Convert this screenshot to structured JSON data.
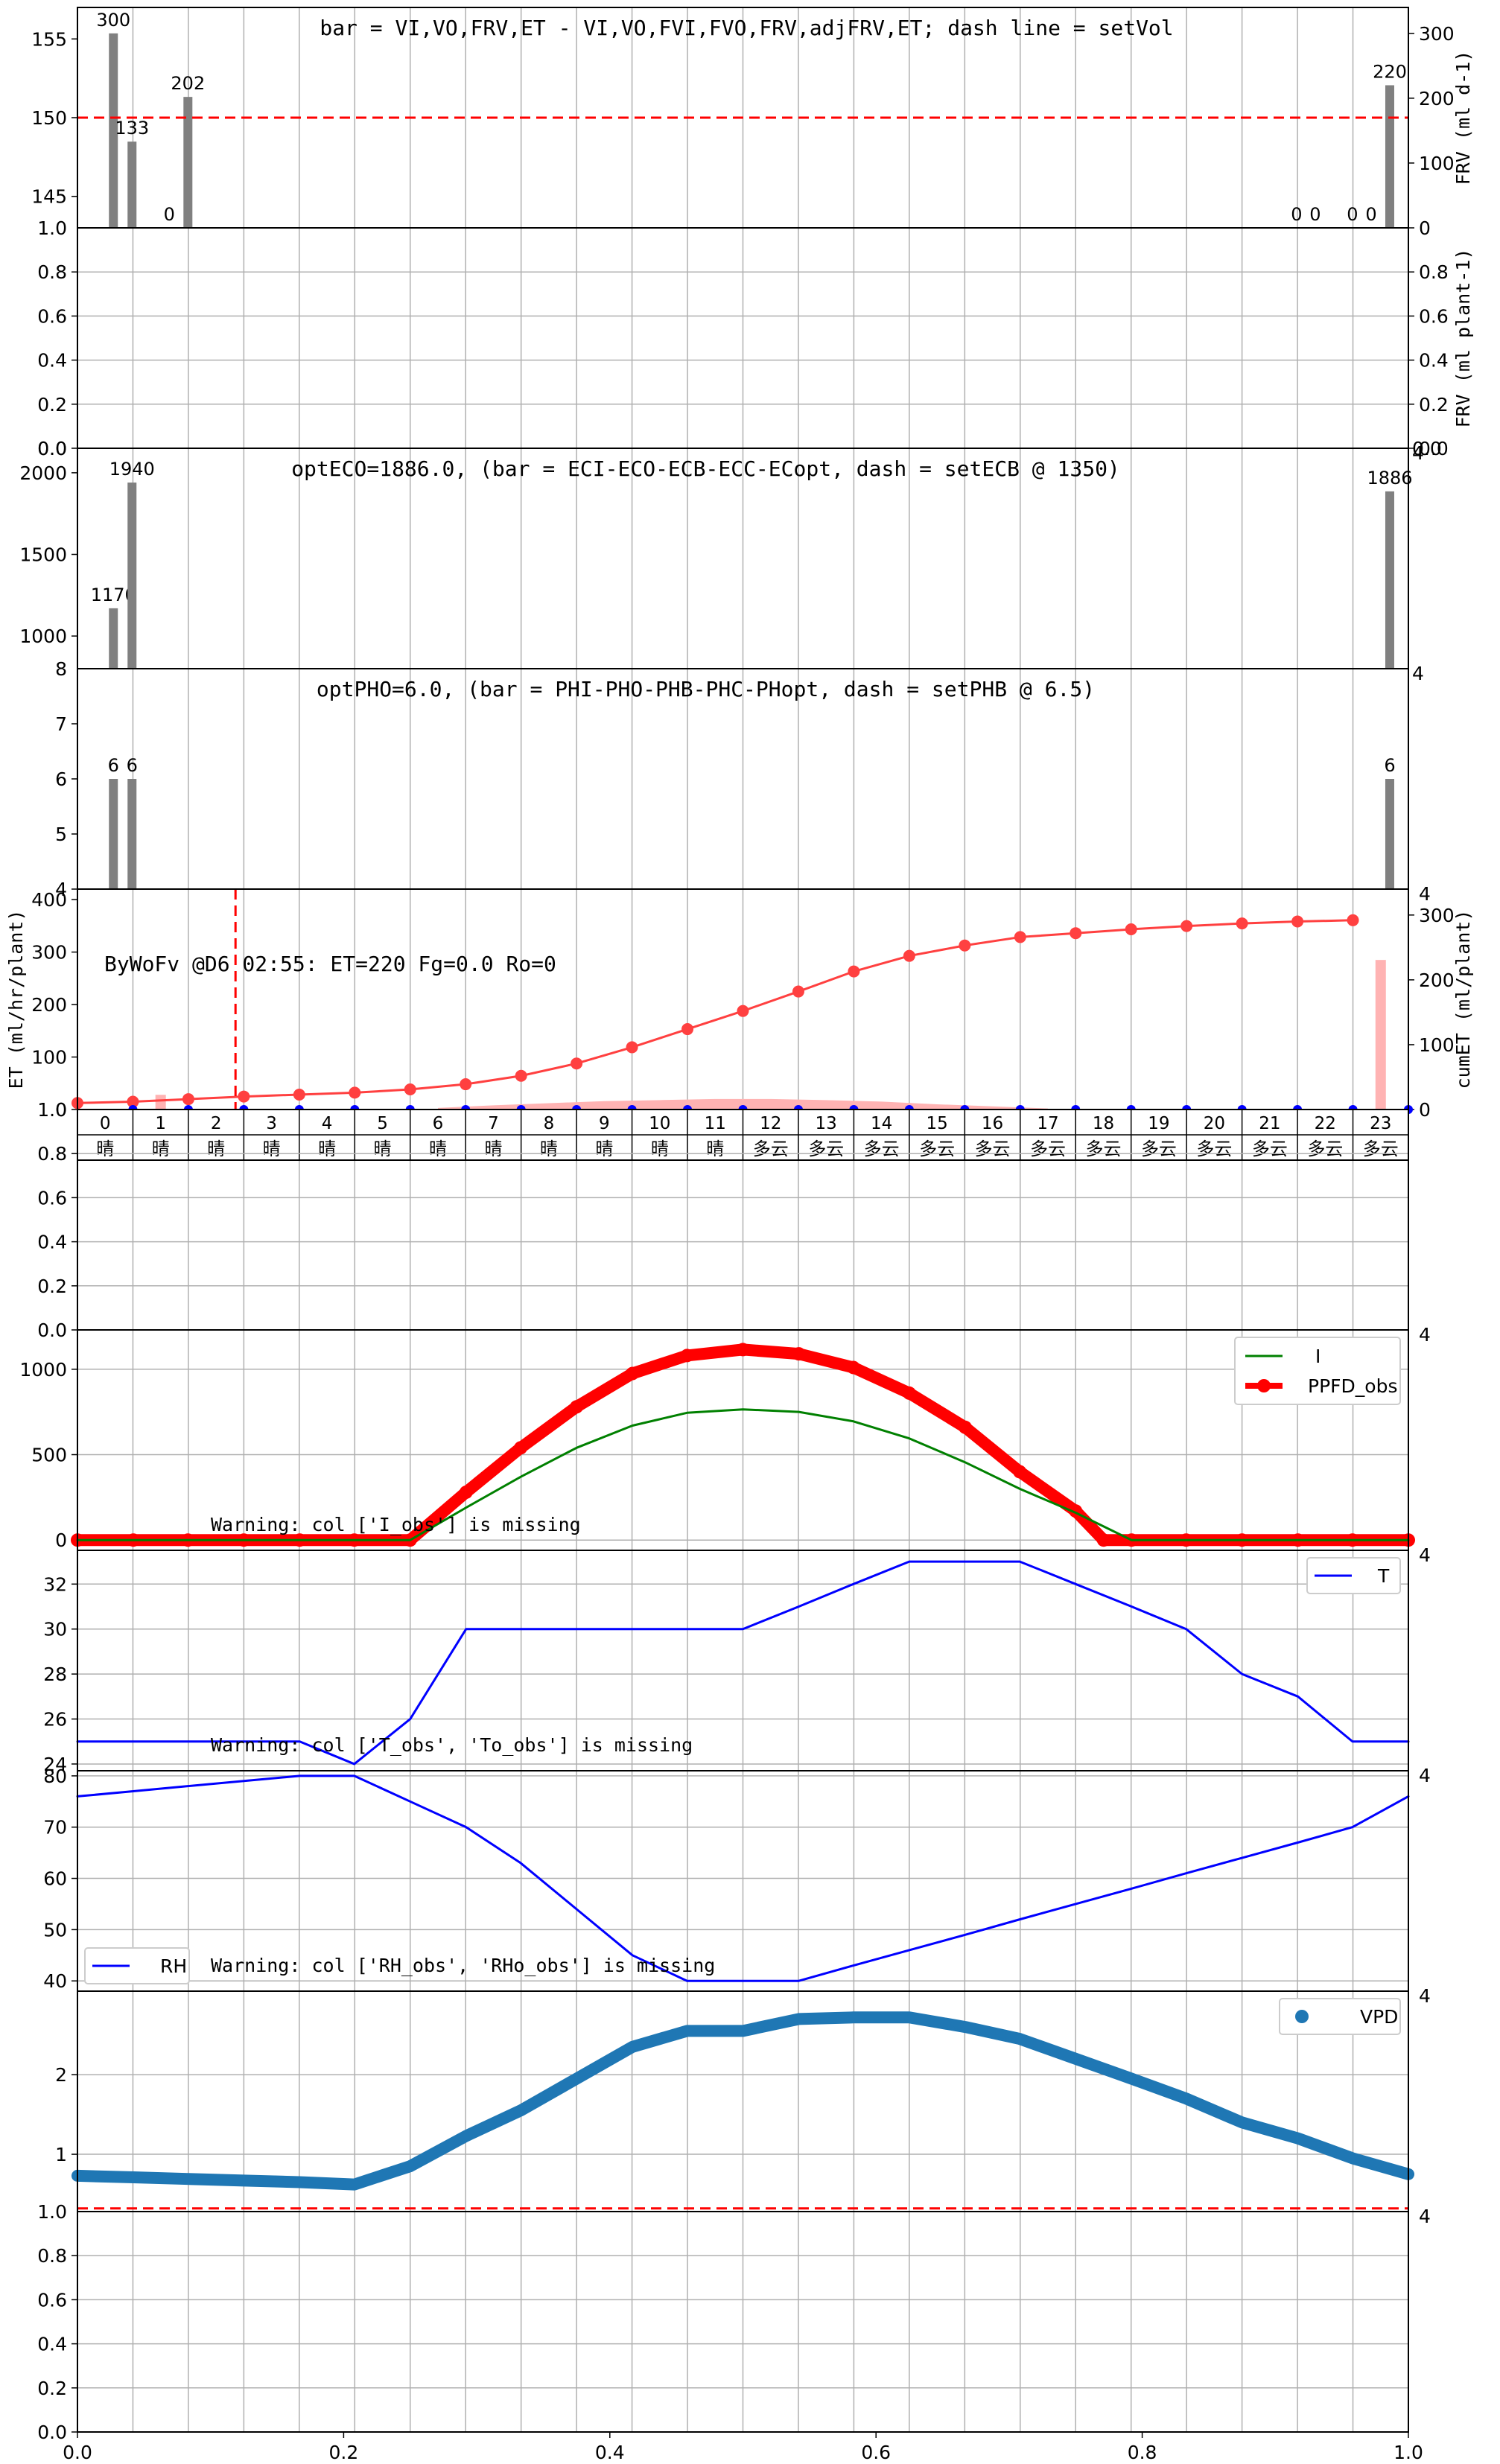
{
  "chart_data": [
    {
      "id": "p1",
      "type": "bar",
      "title": "bar = VI,VO,FRV,ET - VI,VO,FVI,FVO,FRV,adjFRV,ET; dash line = setVol",
      "ylabel_right": "FRV (ml d-1)",
      "ylim": [
        143,
        157
      ],
      "yticks": [
        145,
        150,
        155
      ],
      "ylim_right": [
        0,
        340
      ],
      "yticks_right": [
        0,
        100,
        200,
        300
      ],
      "hline": {
        "y": 150,
        "color": "#ff0000"
      },
      "bars": [
        {
          "x": 0.027,
          "value": 300,
          "label": "300"
        },
        {
          "x": 0.041,
          "value": 133,
          "label": "133"
        },
        {
          "x": 0.069,
          "value": 0,
          "label": "0"
        },
        {
          "x": 0.083,
          "value": 202,
          "label": "202"
        },
        {
          "x": 0.916,
          "value": 0,
          "label": "0"
        },
        {
          "x": 0.93,
          "value": 0,
          "label": "0"
        },
        {
          "x": 0.958,
          "value": 0,
          "label": "0"
        },
        {
          "x": 0.972,
          "value": 0,
          "label": "0"
        },
        {
          "x": 0.986,
          "value": 220,
          "label": "220"
        }
      ],
      "corner_labels": [
        "1.0",
        "0",
        "0.0",
        "0"
      ]
    },
    {
      "id": "p2",
      "type": "line",
      "ylabel_right": "FRV (ml plant-1)",
      "yticks": [
        "0.0",
        "0.2",
        "0.4",
        "0.6",
        "0.8"
      ],
      "yticks_right": [
        "0.0",
        "0.2",
        "0.4",
        "0.6",
        "0.8"
      ],
      "corner_labels": [
        "0",
        "4"
      ]
    },
    {
      "id": "p3",
      "type": "bar",
      "title": "optECO=1886.0, (bar = ECI-ECO-ECB-ECC-ECopt, dash = setECB @ 1350)",
      "ylim": [
        800,
        2150
      ],
      "yticks": [
        1000,
        1500,
        2000
      ],
      "bars": [
        {
          "x": 0.027,
          "value": 1170,
          "label": "1170"
        },
        {
          "x": 0.041,
          "value": 1940,
          "label": "1940"
        },
        {
          "x": 0.986,
          "value": 1886,
          "label": "1886"
        }
      ],
      "corner_labels": [
        "8",
        "4"
      ]
    },
    {
      "id": "p4",
      "type": "bar",
      "title": "optPHO=6.0, (bar = PHI-PHO-PHB-PHC-PHopt, dash = setPHB @ 6.5)",
      "ylim": [
        4,
        8
      ],
      "yticks": [
        4,
        5,
        6,
        7
      ],
      "bars": [
        {
          "x": 0.027,
          "value": 6,
          "label": "6"
        },
        {
          "x": 0.041,
          "value": 6,
          "label": "6"
        },
        {
          "x": 0.986,
          "value": 6,
          "label": "6"
        }
      ],
      "corner_labels": [
        "4"
      ]
    },
    {
      "id": "p5",
      "type": "line",
      "ylabel": "ET (ml/hr/plant)",
      "ylabel_right": "cumET (ml/plant)",
      "annotation": "ByWoFv @D6 02:55: ET=220 Fg=0.0 Ro=0",
      "ylim": [
        0,
        420
      ],
      "yticks": [
        0,
        100,
        200,
        300,
        400
      ],
      "ylim_right": [
        0,
        340
      ],
      "yticks_right": [
        0,
        100,
        200,
        300
      ],
      "vline": {
        "x": 2.85,
        "color": "#ff0000"
      },
      "hours": [
        0,
        1,
        2,
        3,
        4,
        5,
        6,
        7,
        8,
        9,
        10,
        11,
        12,
        13,
        14,
        15,
        16,
        17,
        18,
        19,
        20,
        21,
        22,
        23
      ],
      "weather": [
        "晴",
        "晴",
        "晴",
        "晴",
        "晴",
        "晴",
        "晴",
        "晴",
        "晴",
        "晴",
        "晴",
        "晴",
        "多云",
        "多云",
        "多云",
        "多云",
        "多云",
        "多云",
        "多云",
        "多云",
        "多云",
        "多云",
        "多云",
        "多云"
      ],
      "cumET": {
        "x": [
          -0.5,
          0.5,
          1.5,
          2.5,
          3.5,
          4.5,
          5.5,
          6.5,
          7.5,
          8.5,
          9.5,
          10.5,
          11.5,
          12.5,
          13.5,
          14.5,
          15.5,
          16.5,
          17.5,
          18.5,
          19.5,
          20.5,
          21.5,
          22.5
        ],
        "y": [
          10,
          12,
          16,
          20,
          23,
          26,
          31,
          39,
          52,
          71,
          96,
          124,
          152,
          182,
          213,
          237,
          253,
          266,
          272,
          278,
          283,
          287,
          290,
          292
        ]
      },
      "ET_bars": [
        {
          "x": 1.0,
          "value": 28
        },
        {
          "x": 23.0,
          "value": 285
        }
      ],
      "ET_area": {
        "x": [
          6,
          7,
          8,
          9,
          10,
          11,
          12,
          13,
          14,
          15,
          16,
          17
        ],
        "y": [
          3,
          8,
          12,
          16,
          18,
          20,
          20,
          18,
          15,
          10,
          6,
          2
        ]
      },
      "blue_dots_y": 0,
      "corner_labels": [
        "1.0",
        "0"
      ]
    },
    {
      "id": "p6",
      "type": "line",
      "yticks": [
        "0.0",
        "0.2",
        "0.4",
        "0.6",
        "0.8"
      ],
      "corner_labels": [
        "0.0"
      ]
    },
    {
      "id": "p7",
      "type": "line",
      "warning": "Warning: col ['I_obs'] is missing",
      "ylim": [
        -60,
        1230
      ],
      "yticks": [
        0,
        500,
        1000
      ],
      "legend": [
        "I",
        "PPFD_obs"
      ],
      "series": [
        {
          "name": "I",
          "color": "#008000",
          "x": [
            0,
            0.042,
            0.083,
            0.125,
            0.167,
            0.208,
            0.25,
            0.292,
            0.333,
            0.375,
            0.417,
            0.458,
            0.5,
            0.542,
            0.583,
            0.625,
            0.667,
            0.708,
            0.75,
            0.792,
            0.833,
            0.875,
            0.917,
            0.958,
            1.0
          ],
          "y": [
            0,
            0,
            0,
            0,
            0,
            0,
            0,
            190,
            370,
            540,
            670,
            745,
            765,
            750,
            695,
            595,
            455,
            300,
            160,
            0,
            0,
            0,
            0,
            0,
            0
          ]
        },
        {
          "name": "PPFD_obs",
          "color": "#ff0000",
          "x": [
            0,
            0.042,
            0.083,
            0.125,
            0.167,
            0.208,
            0.25,
            0.292,
            0.333,
            0.375,
            0.417,
            0.458,
            0.5,
            0.542,
            0.583,
            0.625,
            0.667,
            0.708,
            0.75,
            0.771,
            0.792,
            0.833,
            0.875,
            0.917,
            0.958,
            1.0
          ],
          "y": [
            0,
            0,
            0,
            0,
            0,
            0,
            0,
            280,
            540,
            780,
            975,
            1080,
            1115,
            1090,
            1010,
            860,
            660,
            400,
            170,
            0,
            0,
            0,
            0,
            0,
            0,
            0
          ]
        }
      ],
      "corner_labels": [
        "4"
      ]
    },
    {
      "id": "p8",
      "type": "line",
      "warning": "Warning: col ['T_obs', 'To_obs'] is missing",
      "ylim": [
        23.7,
        33.5
      ],
      "yticks": [
        24,
        26,
        28,
        30,
        32
      ],
      "legend": [
        "T"
      ],
      "series": [
        {
          "name": "T",
          "color": "#0000ff",
          "x": [
            0,
            0.042,
            0.083,
            0.125,
            0.167,
            0.208,
            0.25,
            0.292,
            0.333,
            0.375,
            0.417,
            0.458,
            0.5,
            0.542,
            0.583,
            0.625,
            0.667,
            0.708,
            0.75,
            0.792,
            0.833,
            0.875,
            0.917,
            0.958,
            1.0
          ],
          "y": [
            25,
            25,
            25,
            25,
            25,
            24,
            26,
            30,
            30,
            30,
            30,
            30,
            30,
            31,
            32,
            33,
            33,
            33,
            32,
            31,
            30,
            28,
            27,
            25,
            25
          ]
        }
      ],
      "corner_labels": [
        "4"
      ]
    },
    {
      "id": "p9",
      "type": "line",
      "warning": "Warning: col ['RH_obs', 'RHo_obs'] is missing",
      "ylim": [
        38,
        81
      ],
      "yticks": [
        40,
        50,
        60,
        70,
        80
      ],
      "legend": [
        "RH"
      ],
      "series": [
        {
          "name": "RH",
          "color": "#0000ff",
          "x": [
            0,
            0.042,
            0.083,
            0.125,
            0.167,
            0.208,
            0.25,
            0.292,
            0.333,
            0.375,
            0.417,
            0.458,
            0.5,
            0.542,
            0.583,
            0.625,
            0.667,
            0.708,
            0.75,
            0.792,
            0.833,
            0.875,
            0.917,
            0.958,
            1.0
          ],
          "y": [
            76,
            77,
            78,
            79,
            80,
            80,
            75,
            70,
            63,
            54,
            45,
            40,
            40,
            40,
            43,
            46,
            49,
            52,
            55,
            58,
            61,
            64,
            67,
            70,
            76
          ]
        }
      ],
      "corner_labels": [
        "4"
      ]
    },
    {
      "id": "p10",
      "type": "line",
      "ylim": [
        0.28,
        3.05
      ],
      "yticks": [
        1,
        2
      ],
      "legend": [
        "VPD"
      ],
      "hline": {
        "y": 0.32,
        "color": "#ff0000"
      },
      "series": [
        {
          "name": "VPD",
          "color": "#1f77b4",
          "x": [
            0,
            0.042,
            0.083,
            0.125,
            0.167,
            0.208,
            0.25,
            0.292,
            0.333,
            0.375,
            0.417,
            0.458,
            0.5,
            0.542,
            0.583,
            0.625,
            0.667,
            0.708,
            0.75,
            0.792,
            0.833,
            0.875,
            0.917,
            0.958,
            1.0
          ],
          "y": [
            0.73,
            0.71,
            0.69,
            0.67,
            0.65,
            0.62,
            0.85,
            1.23,
            1.55,
            1.95,
            2.35,
            2.55,
            2.55,
            2.7,
            2.72,
            2.72,
            2.6,
            2.45,
            2.2,
            1.95,
            1.7,
            1.4,
            1.2,
            0.95,
            0.75
          ]
        }
      ],
      "corner_labels": [
        "4"
      ]
    },
    {
      "id": "p11",
      "type": "line",
      "yticks": [
        "0.0",
        "0.2",
        "0.4",
        "0.6",
        "0.8"
      ],
      "xticks": [
        "0.0",
        "0.2",
        "0.4",
        "0.6",
        "0.8",
        "1.0"
      ],
      "corner_labels": [
        "1.0",
        "4"
      ]
    }
  ],
  "colors": {
    "bar_gray": "#808080",
    "accent_red": "#ff0000",
    "cum_red": "#ff4040",
    "et_pink": "#ffb3b3",
    "line_blue": "#0000ff",
    "line_green": "#008000",
    "vpd_blue": "#1f77b4",
    "grid": "#b0b0b0"
  }
}
